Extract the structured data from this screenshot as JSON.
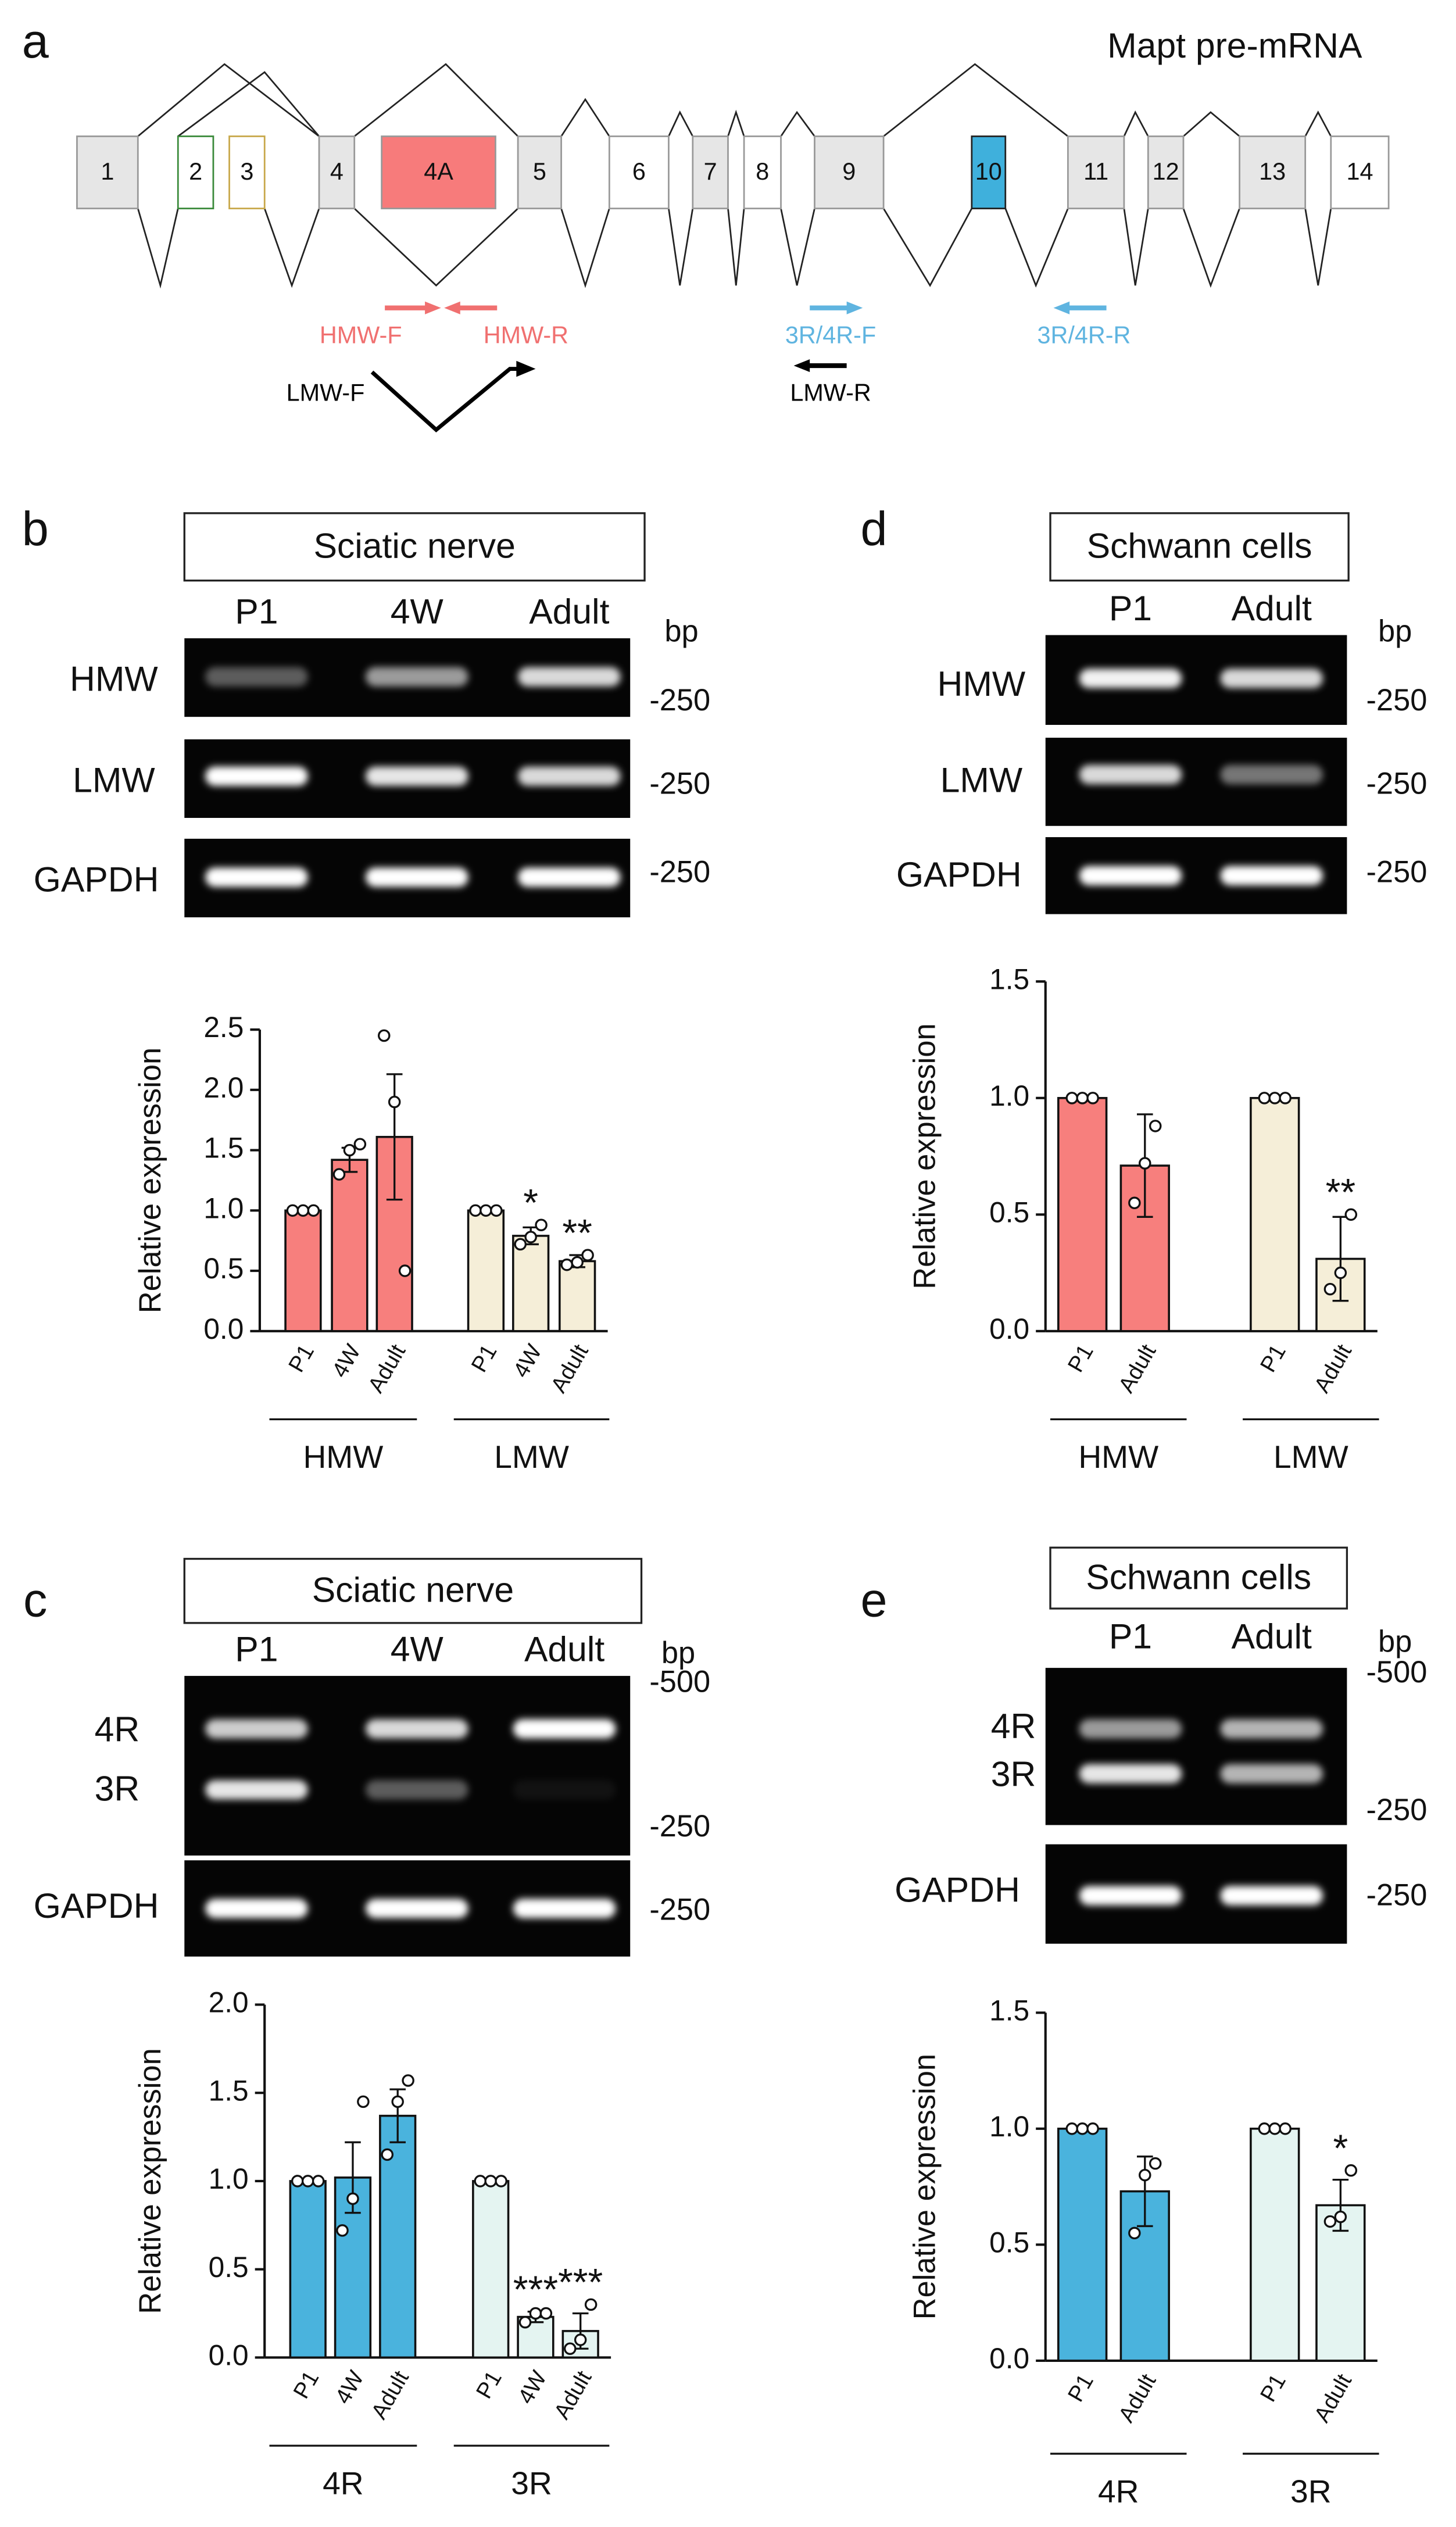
{
  "diagram": {
    "panel_label": "a",
    "title": "Mapt pre-mRNA",
    "exons": [
      "1",
      "2",
      "3",
      "4",
      "4A",
      "5",
      "6",
      "7",
      "8",
      "9",
      "10",
      "11",
      "12",
      "13",
      "14"
    ],
    "primers": [
      "HMW-F",
      "HMW-R",
      "3R/4R-F",
      "3R/4R-R",
      "LMW-F",
      "LMW-R"
    ]
  },
  "gels": [
    {
      "panel_label": "b",
      "title": "Sciatic nerve",
      "lanes": [
        "P1",
        "4W",
        "Adult"
      ],
      "unit": "bp",
      "rows": [
        {
          "names": [
            "HMW"
          ],
          "markers": [
            "-250"
          ]
        },
        {
          "names": [
            "LMW"
          ],
          "markers": [
            "-250"
          ]
        },
        {
          "names": [
            "GAPDH"
          ],
          "markers": [
            "-250"
          ]
        }
      ]
    },
    {
      "panel_label": "c",
      "title": "Sciatic nerve",
      "lanes": [
        "P1",
        "4W",
        "Adult"
      ],
      "unit": "bp",
      "rows": [
        {
          "names": [
            "4R",
            "3R"
          ],
          "markers": [
            "-500",
            "-250"
          ]
        },
        {
          "names": [
            "GAPDH"
          ],
          "markers": [
            "-250"
          ]
        }
      ]
    },
    {
      "panel_label": "d",
      "title": "Schwann cells",
      "lanes": [
        "P1",
        "Adult"
      ],
      "unit": "bp",
      "rows": [
        {
          "names": [
            "HMW"
          ],
          "markers": [
            "-250"
          ]
        },
        {
          "names": [
            "LMW"
          ],
          "markers": [
            "-250"
          ]
        },
        {
          "names": [
            "GAPDH"
          ],
          "markers": [
            "-250"
          ]
        }
      ]
    },
    {
      "panel_label": "e",
      "title": "Schwann cells",
      "lanes": [
        "P1",
        "Adult"
      ],
      "unit": "bp",
      "rows": [
        {
          "names": [
            "4R",
            "3R"
          ],
          "markers": [
            "-500",
            "-250"
          ]
        },
        {
          "names": [
            "GAPDH"
          ],
          "markers": [
            "-250"
          ]
        }
      ]
    }
  ],
  "chart_data": [
    {
      "type": "bar",
      "y_label": "Relative expression",
      "categories": [
        "P1",
        "4W",
        "Adult"
      ],
      "ylim": [
        0,
        2.5
      ],
      "yticks": [
        {
          "value": 0,
          "label": "0.0"
        },
        {
          "value": 0.5,
          "label": "0.5"
        },
        {
          "value": 1,
          "label": "1.0"
        },
        {
          "value": 1.5,
          "label": "1.5"
        },
        {
          "value": 2,
          "label": "2.0"
        },
        {
          "value": 2.5,
          "label": "2.5"
        }
      ],
      "series": [
        {
          "name": "HMW",
          "color": "#f77f7d",
          "values": [
            1.0,
            1.42,
            1.61
          ],
          "errors": [
            0,
            0.1,
            0.52
          ],
          "points": [
            [
              1,
              1,
              1
            ],
            [
              1.3,
              1.5,
              1.55
            ],
            [
              2.45,
              1.9,
              0.5
            ]
          ],
          "annotations": [
            null,
            null,
            null
          ]
        },
        {
          "name": "LMW",
          "color": "#f5eed8",
          "values": [
            1.0,
            0.79,
            0.58
          ],
          "errors": [
            0,
            0.07,
            0.05
          ],
          "points": [
            [
              1,
              1,
              1
            ],
            [
              0.72,
              0.78,
              0.88
            ],
            [
              0.55,
              0.57,
              0.63
            ]
          ],
          "annotations": [
            null,
            "*",
            "**"
          ]
        }
      ]
    },
    {
      "type": "bar",
      "y_label": "Relative expression",
      "categories": [
        "P1",
        "4W",
        "Adult"
      ],
      "ylim": [
        0,
        2
      ],
      "yticks": [
        {
          "value": 0,
          "label": "0.0"
        },
        {
          "value": 0.5,
          "label": "0.5"
        },
        {
          "value": 1,
          "label": "1.0"
        },
        {
          "value": 1.5,
          "label": "1.5"
        },
        {
          "value": 2,
          "label": "2.0"
        }
      ],
      "series": [
        {
          "name": "4R",
          "color": "#4ab3dd",
          "values": [
            1.0,
            1.02,
            1.37
          ],
          "errors": [
            0,
            0.2,
            0.15
          ],
          "points": [
            [
              1,
              1,
              1
            ],
            [
              0.72,
              0.9,
              1.45
            ],
            [
              1.15,
              1.45,
              1.57
            ]
          ],
          "annotations": [
            null,
            null,
            null
          ]
        },
        {
          "name": "3R",
          "color": "#e4f4f1",
          "values": [
            1.0,
            0.23,
            0.15
          ],
          "errors": [
            0,
            0.03,
            0.1
          ],
          "points": [
            [
              1,
              1,
              1
            ],
            [
              0.2,
              0.25,
              0.25
            ],
            [
              0.05,
              0.1,
              0.3
            ]
          ],
          "annotations": [
            null,
            "***",
            "***"
          ]
        }
      ]
    },
    {
      "type": "bar",
      "y_label": "Relative expression",
      "categories": [
        "P1",
        "Adult"
      ],
      "ylim": [
        0,
        1.5
      ],
      "yticks": [
        {
          "value": 0,
          "label": "0.0"
        },
        {
          "value": 0.5,
          "label": "0.5"
        },
        {
          "value": 1,
          "label": "1.0"
        },
        {
          "value": 1.5,
          "label": "1.5"
        }
      ],
      "series": [
        {
          "name": "HMW",
          "color": "#f77f7d",
          "values": [
            1.0,
            0.71
          ],
          "errors": [
            0,
            0.22
          ],
          "points": [
            [
              1,
              1,
              1
            ],
            [
              0.55,
              0.72,
              0.88
            ]
          ],
          "annotations": [
            null,
            null
          ]
        },
        {
          "name": "LMW",
          "color": "#f5eed8",
          "values": [
            1.0,
            0.31
          ],
          "errors": [
            0,
            0.18
          ],
          "points": [
            [
              1,
              1,
              1
            ],
            [
              0.18,
              0.25,
              0.5
            ]
          ],
          "annotations": [
            null,
            "**"
          ]
        }
      ]
    },
    {
      "type": "bar",
      "y_label": "Relative expression",
      "categories": [
        "P1",
        "Adult"
      ],
      "ylim": [
        0,
        1.5
      ],
      "yticks": [
        {
          "value": 0,
          "label": "0.0"
        },
        {
          "value": 0.5,
          "label": "0.5"
        },
        {
          "value": 1,
          "label": "1.0"
        },
        {
          "value": 1.5,
          "label": "1.5"
        }
      ],
      "series": [
        {
          "name": "4R",
          "color": "#4ab3dd",
          "values": [
            1.0,
            0.73
          ],
          "errors": [
            0,
            0.15
          ],
          "points": [
            [
              1,
              1,
              1
            ],
            [
              0.55,
              0.8,
              0.85
            ]
          ],
          "annotations": [
            null,
            null
          ]
        },
        {
          "name": "3R",
          "color": "#e4f4f1",
          "values": [
            1.0,
            0.67
          ],
          "errors": [
            0,
            0.11
          ],
          "points": [
            [
              1,
              1,
              1
            ],
            [
              0.6,
              0.62,
              0.82
            ]
          ],
          "annotations": [
            null,
            "*"
          ]
        }
      ]
    }
  ]
}
